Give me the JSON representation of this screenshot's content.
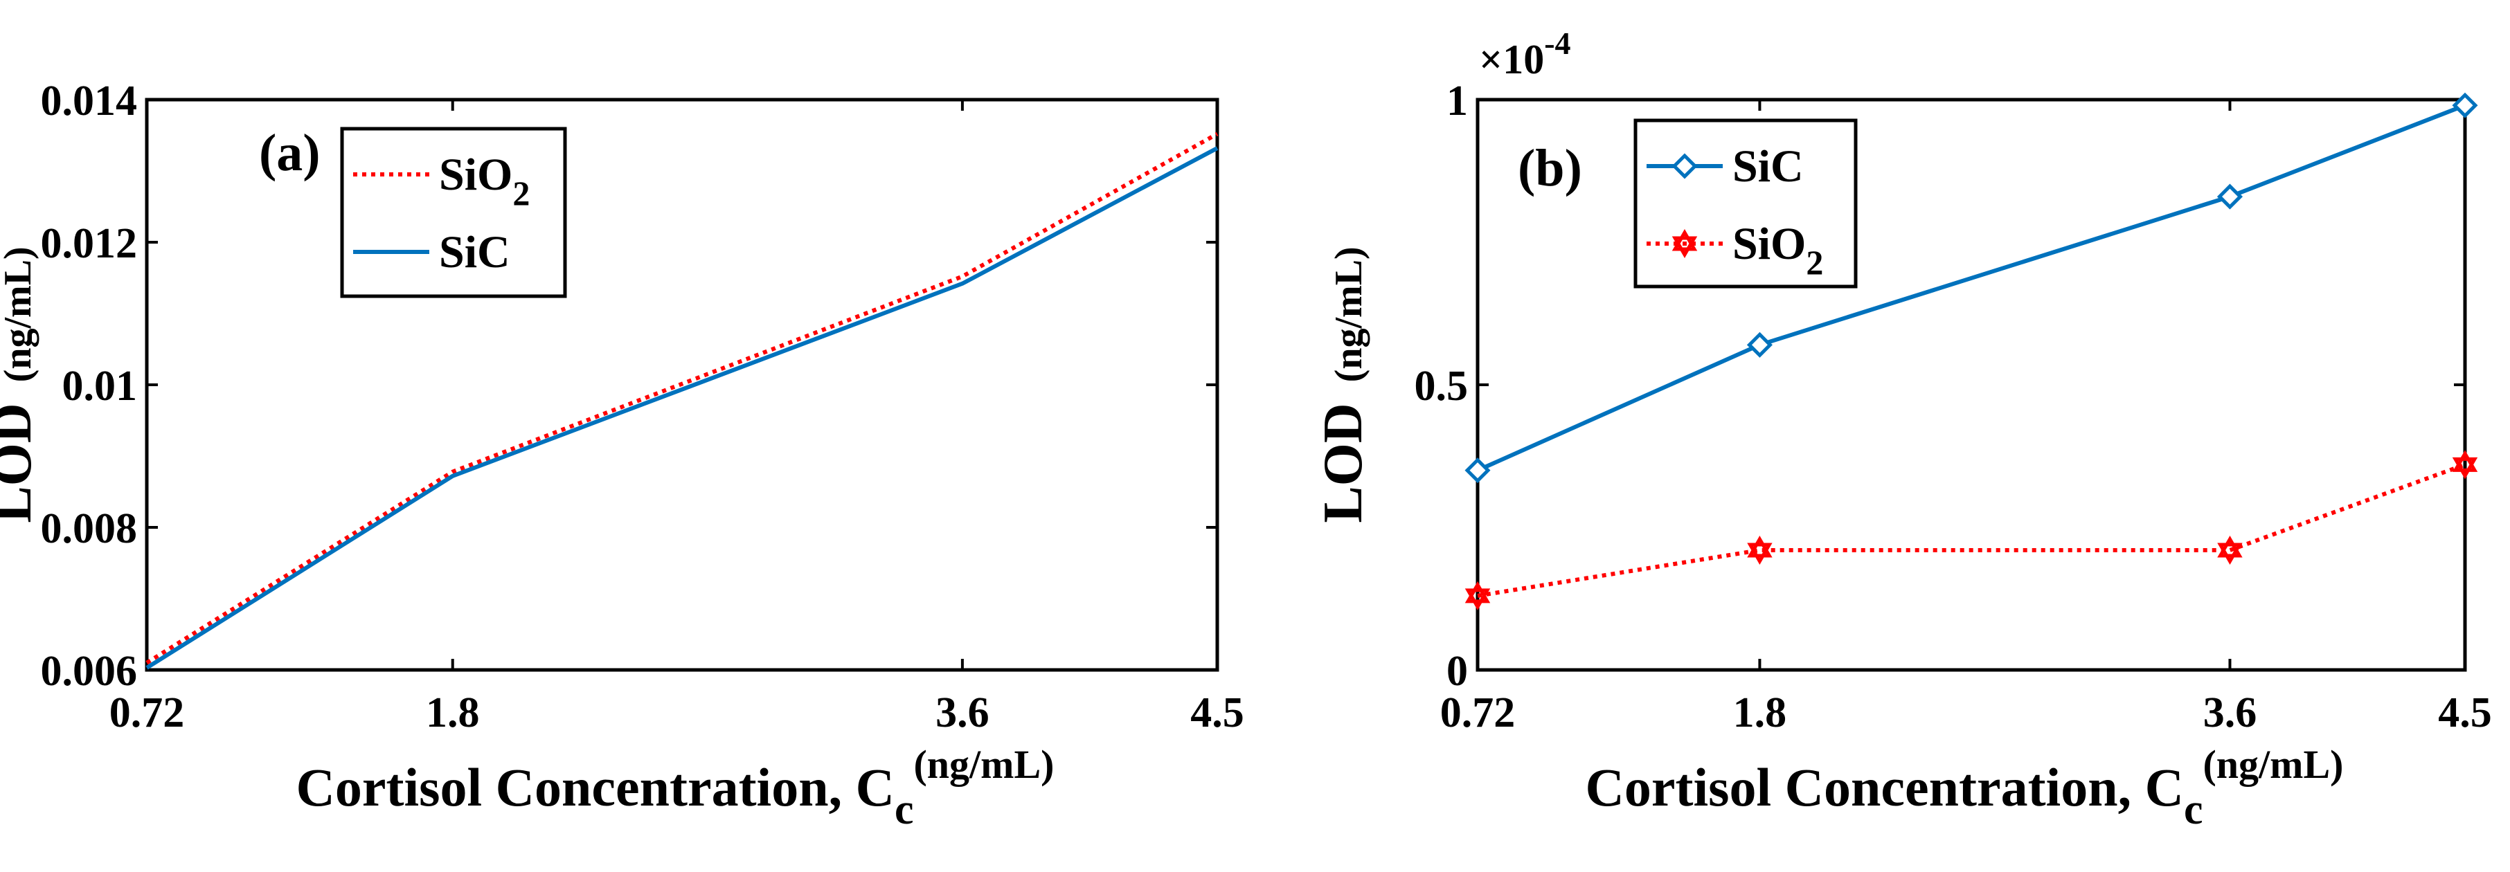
{
  "chart_data": [
    {
      "type": "line",
      "panel_label": "(a)",
      "x": [
        0.72,
        1.8,
        3.6,
        4.5
      ],
      "x_tick_labels": [
        "0.72",
        "1.8",
        "3.6",
        "4.5"
      ],
      "xlim": [
        0.72,
        4.5
      ],
      "ylim": [
        0.006,
        0.014
      ],
      "y_ticks": [
        0.006,
        0.008,
        0.01,
        0.012,
        0.014
      ],
      "y_tick_labels": [
        "0.006",
        "0.008",
        "0.01",
        "0.012",
        "0.014"
      ],
      "xlabel": {
        "main": "Cortisol Concentration, C",
        "sub": "c",
        "sup": "(ng/mL)"
      },
      "ylabel": {
        "main": "LOD",
        "unit": "(ng/mL)"
      },
      "legend": {
        "location": "top-left"
      },
      "series": [
        {
          "name_base": "SiO",
          "name_sub": "2",
          "values": [
            0.0061,
            0.00878,
            0.01152,
            0.01352
          ],
          "color": "#ff0000",
          "style": "dotted",
          "marker": "none"
        },
        {
          "name_base": "SiC",
          "name_sub": "",
          "values": [
            0.00603,
            0.00872,
            0.01142,
            0.01332
          ],
          "color": "#0072bd",
          "style": "solid",
          "marker": "none"
        }
      ]
    },
    {
      "type": "line",
      "panel_label": "(b)",
      "x": [
        0.72,
        1.8,
        3.6,
        4.5
      ],
      "x_tick_labels": [
        "0.72",
        "1.8",
        "3.6",
        "4.5"
      ],
      "xlim": [
        0.72,
        4.5
      ],
      "ylim": [
        0,
        1
      ],
      "y_ticks": [
        0,
        0.5,
        1
      ],
      "y_tick_labels": [
        "0",
        "0.5",
        "1"
      ],
      "y_exponent": {
        "base": "×10",
        "power": "-4"
      },
      "xlabel": {
        "main": "Cortisol Concentration, C",
        "sub": "c",
        "sup": "(ng/mL)"
      },
      "ylabel": {
        "main": "LOD",
        "unit": "(ng/mL)"
      },
      "legend": {
        "location": "top-left"
      },
      "series": [
        {
          "name_base": "SiC",
          "name_sub": "",
          "values": [
            0.35,
            0.57,
            0.83,
            0.99
          ],
          "color": "#0072bd",
          "style": "solid",
          "marker": "diamond"
        },
        {
          "name_base": "SiO",
          "name_sub": "2",
          "values": [
            0.13,
            0.21,
            0.21,
            0.36
          ],
          "color": "#ff0000",
          "style": "dotted",
          "marker": "hexagram"
        }
      ]
    }
  ]
}
